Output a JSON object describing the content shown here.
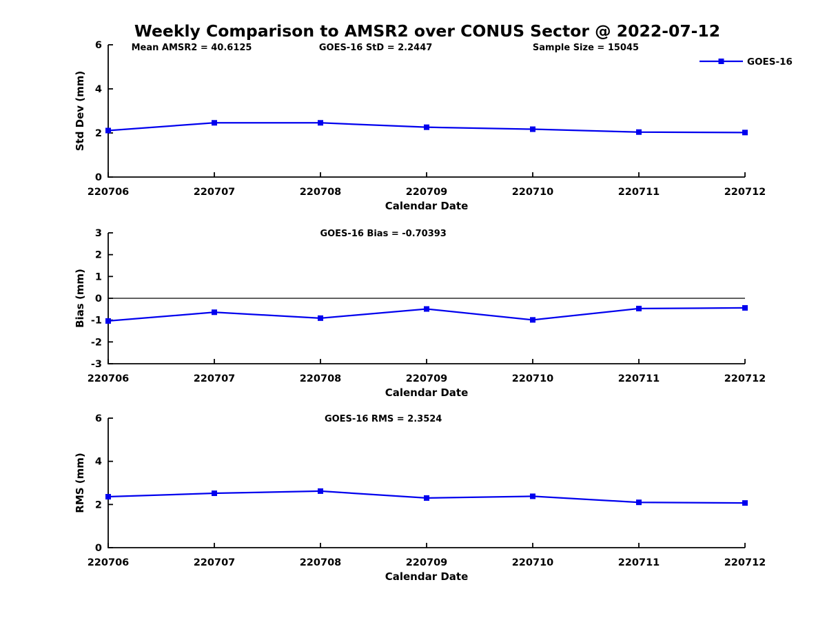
{
  "figure": {
    "title": "Weekly Comparison to AMSR2 over CONUS Sector @ 2022-07-12",
    "background": "#FFFFFF",
    "axis_color": "#000000",
    "accent_color": "#0000EE"
  },
  "chart_data": [
    {
      "id": "stddev",
      "type": "line",
      "xlabel": "Calendar Date",
      "ylabel": "Std Dev (mm)",
      "ylim": [
        0,
        6
      ],
      "yticks": [
        0,
        2,
        4,
        6
      ],
      "grid": false,
      "zero_line": false,
      "categories": [
        "220706",
        "220707",
        "220708",
        "220709",
        "220710",
        "220711",
        "220712"
      ],
      "series": [
        {
          "name": "GOES-16",
          "color": "#0000EE",
          "marker": "square",
          "values": [
            2.11,
            2.46,
            2.46,
            2.26,
            2.17,
            2.04,
            2.02
          ]
        }
      ],
      "annotations": [
        {
          "text": "Mean AMSR2 = 40.6125",
          "fx": 0.131
        },
        {
          "text": "GOES-16 StD = 2.2447",
          "fx": 0.42
        },
        {
          "text": "Sample Size = 15045",
          "fx": 0.75
        }
      ],
      "legend": {
        "label": "GOES-16",
        "position": "top-right-outside"
      }
    },
    {
      "id": "bias",
      "type": "line",
      "xlabel": "Calendar Date",
      "ylabel": "Bias (mm)",
      "ylim": [
        -3,
        3
      ],
      "yticks": [
        -3,
        -2,
        -1,
        0,
        1,
        2,
        3
      ],
      "grid": false,
      "zero_line": true,
      "categories": [
        "220706",
        "220707",
        "220708",
        "220709",
        "220710",
        "220711",
        "220712"
      ],
      "series": [
        {
          "name": "GOES-16",
          "color": "#0000EE",
          "marker": "square",
          "values": [
            -1.04,
            -0.64,
            -0.91,
            -0.49,
            -0.99,
            -0.47,
            -0.44
          ]
        }
      ],
      "annotations": [
        {
          "text": "GOES-16 Bias  = -0.70393",
          "fx": 0.432
        }
      ],
      "legend": null
    },
    {
      "id": "rms",
      "type": "line",
      "xlabel": "Calendar Date",
      "ylabel": "RMS (mm)",
      "ylim": [
        0,
        6
      ],
      "yticks": [
        0,
        2,
        4,
        6
      ],
      "grid": false,
      "zero_line": false,
      "categories": [
        "220706",
        "220707",
        "220708",
        "220709",
        "220710",
        "220711",
        "220712"
      ],
      "series": [
        {
          "name": "GOES-16",
          "color": "#0000EE",
          "marker": "square",
          "values": [
            2.36,
            2.52,
            2.62,
            2.3,
            2.38,
            2.1,
            2.07
          ]
        }
      ],
      "annotations": [
        {
          "text": "GOES-16 RMS = 2.3524",
          "fx": 0.432
        }
      ],
      "legend": null
    }
  ]
}
